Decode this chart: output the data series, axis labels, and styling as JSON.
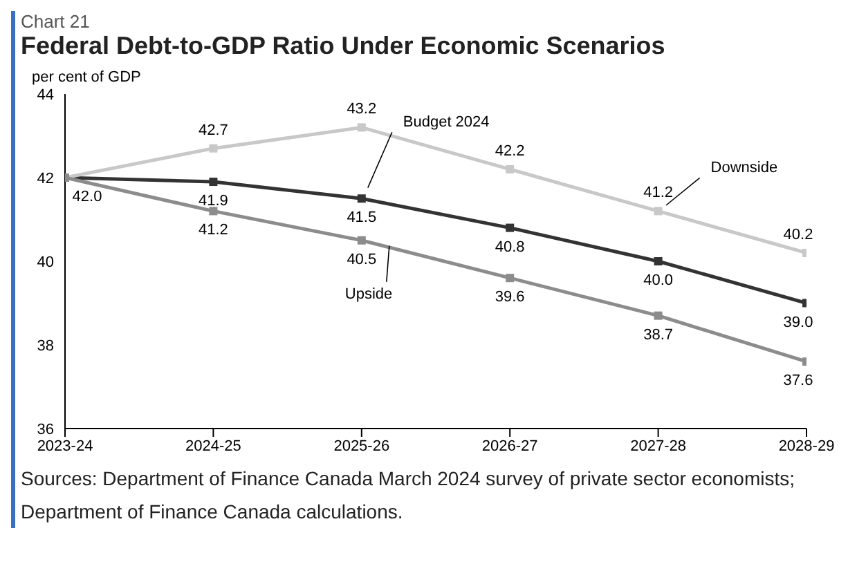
{
  "chart_data": {
    "type": "line",
    "subtitle": "Chart 21",
    "title": "Federal Debt-to-GDP Ratio Under Economic Scenarios",
    "ylabel": "per cent of GDP",
    "categories": [
      "2023-24",
      "2024-25",
      "2025-26",
      "2026-27",
      "2027-28",
      "2028-29"
    ],
    "series": [
      {
        "name": "Budget 2024",
        "color": "#333333",
        "values": [
          42.0,
          41.9,
          41.5,
          40.8,
          40.0,
          39.0
        ],
        "value_labels": [
          "42.0",
          "41.9",
          "41.5",
          "40.8",
          "40.0",
          "39.0"
        ]
      },
      {
        "name": "Downside",
        "color": "#c8c8c8",
        "values": [
          42.0,
          42.7,
          43.2,
          42.2,
          41.2,
          40.2
        ],
        "value_labels": [
          null,
          "42.7",
          "43.2",
          "42.2",
          "41.2",
          "40.2"
        ]
      },
      {
        "name": "Upside",
        "color": "#8c8c8c",
        "values": [
          42.0,
          41.2,
          40.5,
          39.6,
          38.7,
          37.6
        ],
        "value_labels": [
          null,
          "41.2",
          "40.5",
          "39.6",
          "38.7",
          "37.6"
        ]
      }
    ],
    "ylim": [
      36,
      44
    ],
    "yticks": [
      36,
      38,
      40,
      42,
      44
    ],
    "grid": false,
    "legend": false,
    "marker": "square",
    "line_style": "solid",
    "annotations": [
      "Sources: Department of Finance Canada March 2024 survey of private sector economists; Department of Finance Canada calculations."
    ]
  }
}
